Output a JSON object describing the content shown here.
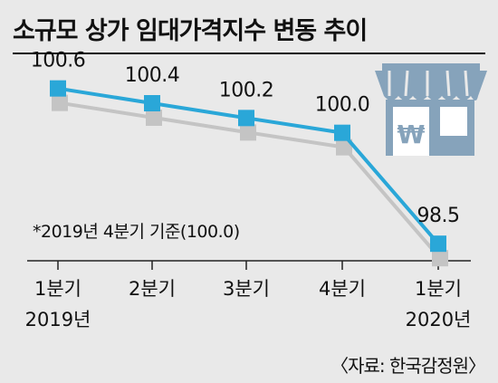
{
  "chart_data": {
    "type": "line",
    "title": "소규모 상가 임대가격지수 변동 추이",
    "categories": [
      [
        "1분기",
        "2019년"
      ],
      [
        "2분기",
        ""
      ],
      [
        "3분기",
        ""
      ],
      [
        "4분기",
        ""
      ],
      [
        "1분기",
        "2020년"
      ]
    ],
    "values": [
      100.6,
      100.4,
      100.2,
      100.0,
      98.5
    ],
    "value_labels": [
      "100.6",
      "100.4",
      "100.2",
      "100.0",
      "98.5"
    ],
    "ylim": [
      98.0,
      101.0
    ],
    "note": "*2019년 4분기 기준(100.0)",
    "source": "〈자료: 한국감정원〉",
    "grid": false,
    "legend": "none",
    "colors": {
      "line": "#2aa7d8",
      "marker": "#2aa7d8",
      "shadow": "#c4c4c4",
      "axis": "#222222",
      "background": "#e9e9e9",
      "icon": "#86a3bb"
    },
    "icon": {
      "name": "store-won-icon",
      "symbol": "₩"
    }
  }
}
